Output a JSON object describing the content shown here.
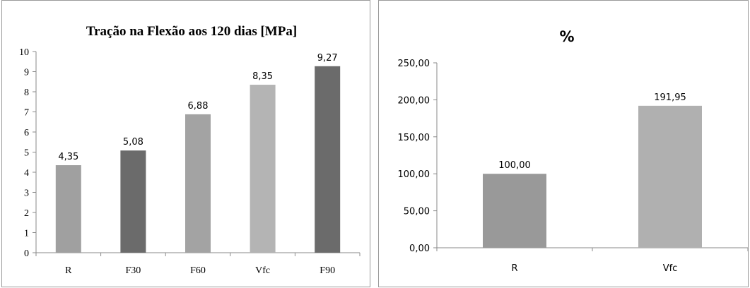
{
  "chart_data": [
    {
      "type": "bar",
      "title": "Tração na Flexão aos 120 dias [MPa]",
      "xlabel": "",
      "ylabel": "",
      "categories": [
        "R",
        "F30",
        "F60",
        "Vfc",
        "F90"
      ],
      "values": [
        4.35,
        5.08,
        6.88,
        8.35,
        9.27
      ],
      "data_labels": [
        "4,35",
        "5,08",
        "6,88",
        "8,35",
        "9,27"
      ],
      "ylim": [
        0,
        10
      ],
      "yticks": [
        0,
        1,
        2,
        3,
        4,
        5,
        6,
        7,
        8,
        9,
        10
      ],
      "ytick_labels": [
        "0",
        "1",
        "2",
        "3",
        "4",
        "5",
        "6",
        "7",
        "8",
        "9",
        "10"
      ],
      "grid": false,
      "bar_colors": [
        "#a0a0a0",
        "#6b6b6b",
        "#a3a3a3",
        "#b4b4b4",
        "#6b6b6b"
      ]
    },
    {
      "type": "bar",
      "title": "%",
      "xlabel": "",
      "ylabel": "",
      "categories": [
        "R",
        "Vfc"
      ],
      "values": [
        100.0,
        191.95
      ],
      "data_labels": [
        "100,00",
        "191,95"
      ],
      "ylim": [
        0,
        250
      ],
      "yticks": [
        0,
        50,
        100,
        150,
        200,
        250
      ],
      "ytick_labels": [
        "0,00",
        "50,00",
        "100,00",
        "150,00",
        "200,00",
        "250,00"
      ],
      "grid": false,
      "bar_colors": [
        "#999999",
        "#b0b0b0"
      ]
    }
  ]
}
